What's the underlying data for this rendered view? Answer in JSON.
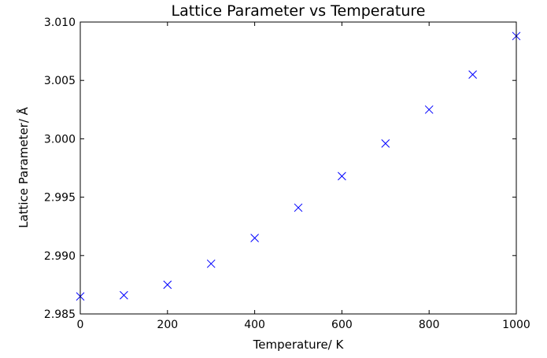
{
  "chart_data": {
    "type": "scatter",
    "title": "Lattice Parameter vs Temperature",
    "xlabel": "Temperature/ K",
    "ylabel": "Lattice Parameter/ Å",
    "xlim": [
      0,
      1000
    ],
    "ylim": [
      2.985,
      3.01
    ],
    "grid": false,
    "legend": "none",
    "marker": "x",
    "marker_color": "#0000ff",
    "x_ticks": [
      "0",
      "200",
      "400",
      "600",
      "800",
      "1000"
    ],
    "y_ticks": [
      "2.985",
      "2.990",
      "2.995",
      "3.000",
      "3.005",
      "3.010"
    ],
    "x_tick_values": [
      0,
      200,
      400,
      600,
      800,
      1000
    ],
    "y_tick_values": [
      2.985,
      2.99,
      2.995,
      3.0,
      3.005,
      3.01
    ],
    "series": [
      {
        "x": [
          0,
          100,
          200,
          300,
          400,
          500,
          600,
          700,
          800,
          900,
          1000
        ],
        "y": [
          2.9865,
          2.9866,
          2.9875,
          2.9893,
          2.9915,
          2.9941,
          2.9968,
          2.9996,
          3.0025,
          3.0055,
          3.0088
        ]
      }
    ]
  }
}
